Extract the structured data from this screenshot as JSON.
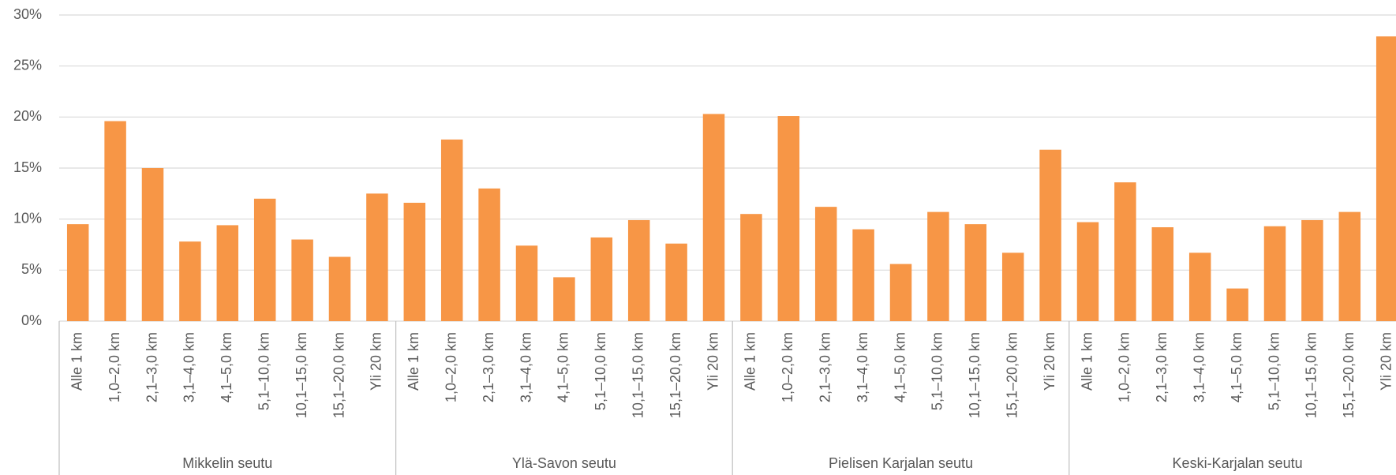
{
  "chart_data": {
    "type": "bar",
    "categories": [
      "Alle 1 km",
      "1,0–2,0 km",
      "2,1–3,0 km",
      "3,1–4,0 km",
      "4,1–5,0 km",
      "5,1–10,0 km",
      "10,1–15,0 km",
      "15,1–20,0 km",
      "Yli 20 km",
      "Alle 1 km",
      "1,0–2,0 km",
      "2,1–3,0 km",
      "3,1–4,0 km",
      "4,1–5,0 km",
      "5,1–10,0 km",
      "10,1–15,0 km",
      "15,1–20,0 km",
      "Yli 20 km",
      "Alle 1 km",
      "1,0–2,0 km",
      "2,1–3,0 km",
      "3,1–4,0 km",
      "4,1–5,0 km",
      "5,1–10,0 km",
      "10,1–15,0 km",
      "15,1–20,0 km",
      "Yli 20 km",
      "Alle 1 km",
      "1,0–2,0 km",
      "2,1–3,0 km",
      "3,1–4,0 km",
      "4,1–5,0 km",
      "5,1–10,0 km",
      "10,1–15,0 km",
      "15,1–20,0 km",
      "Yli 20 km"
    ],
    "groups": [
      "Mikkelin seutu",
      "Ylä-Savon seutu",
      "Pielisen Karjalan seutu",
      "Keski-Karjalan seutu"
    ],
    "values": [
      9.5,
      19.6,
      15.0,
      7.8,
      9.4,
      12.0,
      8.0,
      6.3,
      12.5,
      11.6,
      17.8,
      13.0,
      7.4,
      4.3,
      8.2,
      9.9,
      7.6,
      20.3,
      10.5,
      20.1,
      11.2,
      9.0,
      5.6,
      10.7,
      9.5,
      6.7,
      16.8,
      9.7,
      13.6,
      9.2,
      6.7,
      3.2,
      9.3,
      9.9,
      10.7,
      27.9
    ],
    "color": "#f79646",
    "ylim": [
      0,
      30
    ],
    "yticks": [
      {
        "value": 0,
        "label": "0%"
      },
      {
        "value": 5,
        "label": "5%"
      },
      {
        "value": 10,
        "label": "10%"
      },
      {
        "value": 15,
        "label": "15%"
      },
      {
        "value": 20,
        "label": "20%"
      },
      {
        "value": 25,
        "label": "25%"
      },
      {
        "value": 30,
        "label": "30%"
      }
    ],
    "grid": true
  }
}
